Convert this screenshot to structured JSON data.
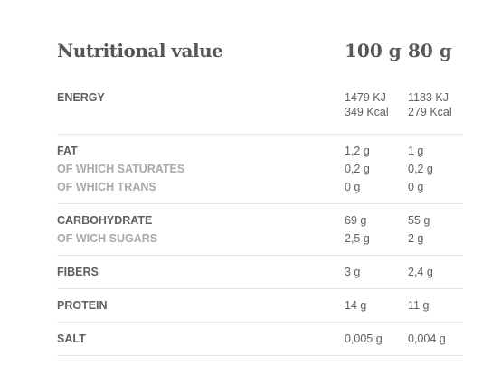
{
  "table": {
    "title": "Nutritional value",
    "col1": "100 g",
    "col2": "80 g",
    "energy": {
      "label": "ENERGY",
      "v1_kj": "1479 KJ",
      "v1_kcal": "349 Kcal",
      "v2_kj": "1183 KJ",
      "v2_kcal": "279 Kcal"
    },
    "fat": {
      "rows": [
        {
          "label": "FAT",
          "v1": "1,2 g",
          "v2": "1 g",
          "sub": false
        },
        {
          "label": "OF WHICH SATURATES",
          "v1": "0,2 g",
          "v2": "0,2 g",
          "sub": true
        },
        {
          "label": "OF WHICH TRANS",
          "v1": "0 g",
          "v2": "0 g",
          "sub": true
        }
      ]
    },
    "carbs": {
      "rows": [
        {
          "label": "CARBOHYDRATE",
          "v1": "69 g",
          "v2": "55 g",
          "sub": false
        },
        {
          "label": "OF WICH SUGARS",
          "v1": "2,5 g",
          "v2": "2 g",
          "sub": true
        }
      ]
    },
    "fibers": {
      "label": "FIBERS",
      "v1": "3 g",
      "v2": "2,4 g"
    },
    "protein": {
      "label": "PROTEIN",
      "v1": "14 g",
      "v2": "11 g"
    },
    "salt": {
      "label": "SALT",
      "v1": "0,005 g",
      "v2": "0,004 g"
    }
  }
}
